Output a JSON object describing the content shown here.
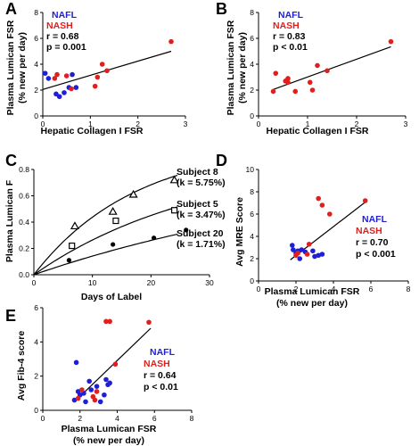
{
  "colors": {
    "nafl": "#1f1fd6",
    "nash": "#e01f1f",
    "ink": "#000000"
  },
  "chart_data": [
    {
      "id": "A",
      "type": "scatter",
      "panel_label": "A",
      "xlabel": "Hepatic Collagen I FSR",
      "ylabel_lines": [
        "Plasma Lumican FSR",
        "(% new per day)"
      ],
      "xlim": [
        0,
        3
      ],
      "ylim": [
        0,
        8
      ],
      "xticks": [
        "0",
        "1",
        "2",
        "3"
      ],
      "yticks": [
        "0",
        "2",
        "4",
        "6",
        "8"
      ],
      "legend": {
        "nafl": "NAFL",
        "nash": "NASH",
        "stats": [
          "r = 0.68",
          "p = 0.001"
        ]
      },
      "fit": [
        [
          0,
          2.05
        ],
        [
          2.7,
          5.0
        ]
      ],
      "series": [
        {
          "group": "nafl",
          "points": [
            [
              0.05,
              3.3
            ],
            [
              0.12,
              2.9
            ],
            [
              0.28,
              1.7
            ],
            [
              0.35,
              1.5
            ],
            [
              0.45,
              1.8
            ],
            [
              0.55,
              2.2
            ],
            [
              0.62,
              3.2
            ],
            [
              0.7,
              2.2
            ]
          ]
        },
        {
          "group": "nash",
          "points": [
            [
              0.3,
              3.2
            ],
            [
              0.25,
              2.9
            ],
            [
              0.5,
              3.1
            ],
            [
              0.6,
              2.1
            ],
            [
              1.1,
              2.3
            ],
            [
              1.15,
              3.0
            ],
            [
              1.25,
              4.0
            ],
            [
              1.35,
              3.5
            ],
            [
              2.7,
              5.75
            ]
          ]
        }
      ]
    },
    {
      "id": "B",
      "type": "scatter",
      "panel_label": "B",
      "xlabel": "Hepatic Collagen I FSR",
      "ylabel_lines": [
        "Plasma Lumican FSR",
        "(% new per day)"
      ],
      "xlim": [
        0,
        3
      ],
      "ylim": [
        0,
        8
      ],
      "xticks": [
        "0",
        "1",
        "2",
        "3"
      ],
      "yticks": [
        "0",
        "2",
        "4",
        "6",
        "8"
      ],
      "legend": {
        "nafl": "NAFL",
        "nash": "NASH",
        "stats": [
          "r = 0.83",
          "p < 0.01"
        ]
      },
      "fit": [
        [
          0.3,
          2.05
        ],
        [
          2.7,
          5.35
        ]
      ],
      "series": [
        {
          "group": "nash",
          "points": [
            [
              0.3,
              1.9
            ],
            [
              0.35,
              3.3
            ],
            [
              0.55,
              2.7
            ],
            [
              0.6,
              2.9
            ],
            [
              0.6,
              2.6
            ],
            [
              0.75,
              1.9
            ],
            [
              1.05,
              2.6
            ],
            [
              1.1,
              2.0
            ],
            [
              1.2,
              3.9
            ],
            [
              1.4,
              3.5
            ],
            [
              2.7,
              5.75
            ]
          ]
        }
      ]
    },
    {
      "id": "C",
      "type": "line",
      "panel_label": "C",
      "xlabel": "Days of Label",
      "ylabel": "Plasma Lumican F",
      "xlim": [
        0,
        30
      ],
      "ylim": [
        0,
        0.8
      ],
      "xticks": [
        "0",
        "10",
        "20",
        "30"
      ],
      "yticks": [
        "0.0",
        "0.2",
        "0.4",
        "0.6",
        "0.8"
      ],
      "series": [
        {
          "name": "Subject 8",
          "k_label": "(k = 5.75%)",
          "k": 0.0575,
          "plateau": 1.0,
          "marker": "triangle",
          "points": [
            [
              7,
              0.37
            ],
            [
              13.5,
              0.48
            ],
            [
              17,
              0.61
            ],
            [
              24,
              0.72
            ]
          ]
        },
        {
          "name": "Subject 5",
          "k_label": "(k = 3.47%)",
          "k": 0.0347,
          "plateau": 0.9,
          "marker": "square",
          "points": [
            [
              6.5,
              0.22
            ],
            [
              14,
              0.41
            ],
            [
              24,
              0.49
            ]
          ]
        },
        {
          "name": "Subject 20",
          "k_label": "(k = 1.71%)",
          "k": 0.0171,
          "plateau": 0.9,
          "marker": "circle",
          "points": [
            [
              6,
              0.11
            ],
            [
              13.5,
              0.23
            ],
            [
              20.5,
              0.28
            ],
            [
              26,
              0.34
            ]
          ]
        }
      ]
    },
    {
      "id": "D",
      "type": "scatter",
      "panel_label": "D",
      "xlabel_lines": [
        "Plasma Lumican FSR",
        "(% new per day)"
      ],
      "ylabel": "Avg MRE Score",
      "xlim": [
        0,
        8
      ],
      "ylim": [
        0,
        10
      ],
      "xticks": [
        "0",
        "2",
        "4",
        "6",
        "8"
      ],
      "yticks": [
        "0",
        "2",
        "4",
        "6",
        "8",
        "10"
      ],
      "legend": {
        "nafl": "NAFL",
        "nash": "NASH",
        "stats": [
          "r = 0.70",
          "p < 0.001"
        ]
      },
      "fit": [
        [
          1.7,
          1.9
        ],
        [
          5.8,
          7.2
        ]
      ],
      "series": [
        {
          "group": "nafl",
          "points": [
            [
              1.8,
              3.2
            ],
            [
              1.85,
              2.8
            ],
            [
              2.0,
              2.5
            ],
            [
              2.1,
              2.7
            ],
            [
              2.2,
              2.0
            ],
            [
              2.3,
              2.8
            ],
            [
              2.5,
              2.6
            ],
            [
              2.9,
              2.7
            ],
            [
              3.0,
              2.2
            ],
            [
              3.2,
              2.3
            ],
            [
              3.4,
              2.4
            ]
          ]
        },
        {
          "group": "nash",
          "points": [
            [
              2.0,
              2.3
            ],
            [
              2.1,
              2.5
            ],
            [
              2.6,
              2.4
            ],
            [
              2.7,
              3.3
            ],
            [
              3.2,
              7.4
            ],
            [
              3.4,
              6.8
            ],
            [
              3.8,
              6.0
            ],
            [
              5.7,
              7.2
            ]
          ]
        }
      ]
    },
    {
      "id": "E",
      "type": "scatter",
      "panel_label": "E",
      "xlabel_lines": [
        "Plasma Lumican FSR",
        "(% new per day)"
      ],
      "ylabel": "Avg Fib-4 score",
      "xlim": [
        0,
        8
      ],
      "ylim": [
        0,
        6
      ],
      "xticks": [
        "0",
        "2",
        "4",
        "6",
        "8"
      ],
      "yticks": [
        "0",
        "2",
        "4",
        "6"
      ],
      "legend": {
        "nafl": "NAFL",
        "nash": "NASH",
        "stats": [
          "r = 0.64",
          "p < 0.01"
        ]
      },
      "fit": [
        [
          1.7,
          0.5
        ],
        [
          5.8,
          4.8
        ]
      ],
      "series": [
        {
          "group": "nafl",
          "points": [
            [
              1.7,
              0.6
            ],
            [
              1.8,
              2.8
            ],
            [
              1.9,
              1.1
            ],
            [
              2.0,
              0.9
            ],
            [
              2.2,
              1.0
            ],
            [
              2.3,
              0.5
            ],
            [
              2.5,
              1.7
            ],
            [
              2.6,
              1.2
            ],
            [
              2.9,
              1.4
            ],
            [
              3.1,
              0.5
            ],
            [
              3.3,
              0.9
            ],
            [
              3.4,
              1.8
            ],
            [
              3.5,
              1.5
            ],
            [
              3.6,
              1.6
            ]
          ]
        },
        {
          "group": "nash",
          "points": [
            [
              1.9,
              0.7
            ],
            [
              2.1,
              1.2
            ],
            [
              2.7,
              0.8
            ],
            [
              2.8,
              0.6
            ],
            [
              2.9,
              1.1
            ],
            [
              3.4,
              5.2
            ],
            [
              3.6,
              5.2
            ],
            [
              3.9,
              2.7
            ],
            [
              5.7,
              5.15
            ]
          ]
        }
      ]
    }
  ]
}
